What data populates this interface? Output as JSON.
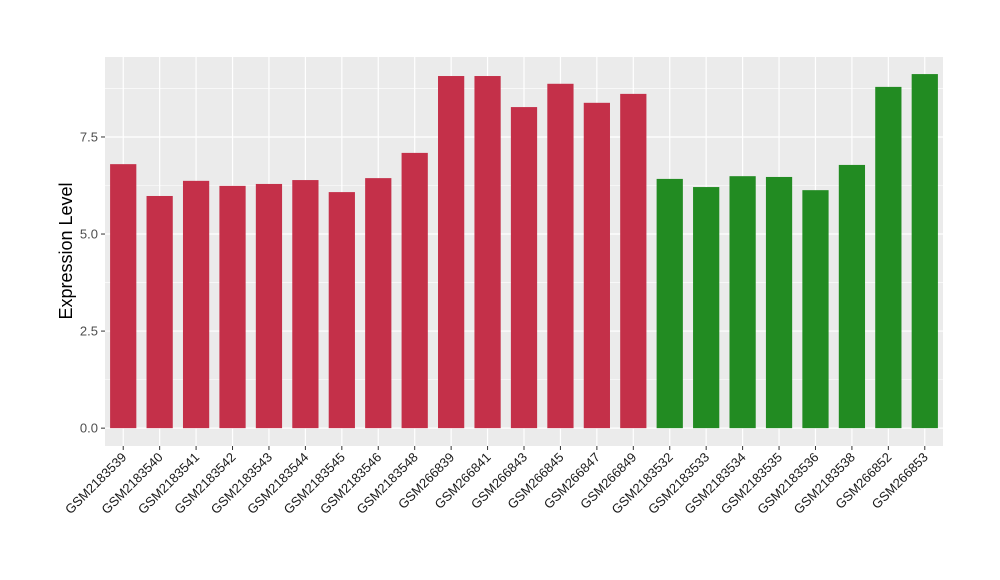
{
  "chart_data": {
    "type": "bar",
    "title": "",
    "xlabel": "",
    "ylabel": "Expression Level",
    "ylim": [
      -0.46,
      9.56
    ],
    "yticks": [
      0,
      2.5,
      5,
      7.5
    ],
    "ytick_labels": [
      "0.0",
      "2.5",
      "5.0",
      "7.5"
    ],
    "grid": true,
    "legend": "none",
    "categories": [
      "GSM2183539",
      "GSM2183540",
      "GSM2183541",
      "GSM2183542",
      "GSM2183543",
      "GSM2183544",
      "GSM2183545",
      "GSM2183546",
      "GSM2183548",
      "GSM266839",
      "GSM266841",
      "GSM266843",
      "GSM266845",
      "GSM266847",
      "GSM266849",
      "GSM2183532",
      "GSM2183533",
      "GSM2183534",
      "GSM2183535",
      "GSM2183536",
      "GSM2183538",
      "GSM266852",
      "GSM266853"
    ],
    "values": [
      6.8,
      5.98,
      6.37,
      6.24,
      6.29,
      6.39,
      6.08,
      6.44,
      7.09,
      9.07,
      9.07,
      8.27,
      8.87,
      8.38,
      8.61,
      6.42,
      6.21,
      6.49,
      6.47,
      6.13,
      6.78,
      8.79,
      9.12
    ],
    "groups": [
      "red",
      "red",
      "red",
      "red",
      "red",
      "red",
      "red",
      "red",
      "red",
      "red",
      "red",
      "red",
      "red",
      "red",
      "red",
      "green",
      "green",
      "green",
      "green",
      "green",
      "green",
      "green",
      "green"
    ],
    "colors": {
      "red": "#C43049",
      "green": "#228B22",
      "panel": "#EBEBEB",
      "grid": "#FFFFFF"
    }
  }
}
